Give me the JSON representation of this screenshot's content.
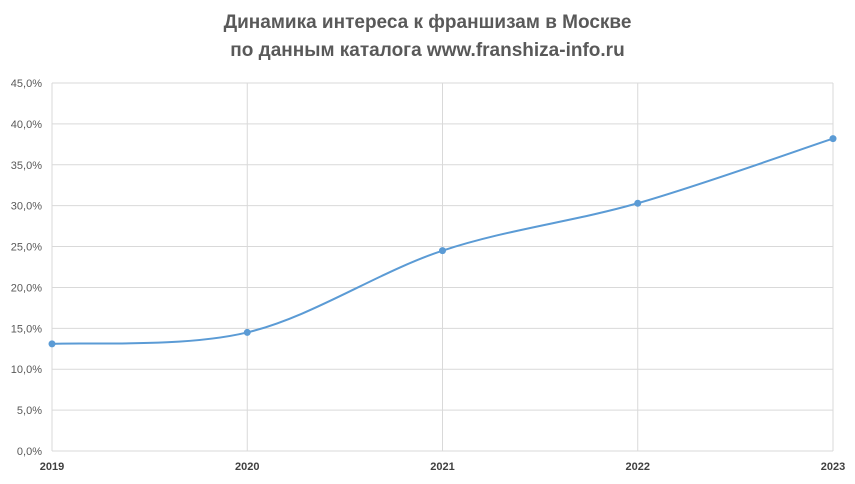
{
  "chart_data": {
    "type": "line",
    "title_line1": "Динамика интереса к франшизам в Москве",
    "title_line2": "по данным каталога www.franshiza-info.ru",
    "categories": [
      "2019",
      "2020",
      "2021",
      "2022",
      "2023"
    ],
    "series": [
      {
        "values": [
          13.1,
          14.5,
          24.5,
          30.3,
          38.2
        ]
      }
    ],
    "ylim": [
      0,
      45
    ],
    "yticks": [
      0,
      5,
      10,
      15,
      20,
      25,
      30,
      35,
      40,
      45
    ],
    "ytick_labels": [
      "0,0%",
      "5,0%",
      "10,0%",
      "15,0%",
      "20,0%",
      "25,0%",
      "30,0%",
      "35,0%",
      "40,0%",
      "45,0%"
    ],
    "grid": true,
    "smooth": true,
    "line_color": "#5b9bd5",
    "grid_color": "#d9d9d9"
  }
}
